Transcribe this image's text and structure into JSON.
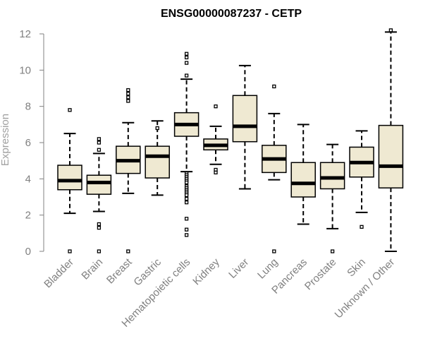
{
  "chart_data": {
    "type": "box",
    "title": "ENSG00000087237 - CETP",
    "xlabel": "",
    "ylabel": "Expression",
    "ylim": [
      0,
      12.3
    ],
    "yticks": [
      0,
      2,
      4,
      6,
      8,
      10,
      12
    ],
    "grid": false,
    "categories": [
      "Bladder",
      "Brain",
      "Breast",
      "Gastric",
      "Hematopoietic cells",
      "Kidney",
      "Liver",
      "Lung",
      "Pancreas",
      "Prostate",
      "Skin",
      "Unknown / Other"
    ],
    "boxes": [
      {
        "category": "Bladder",
        "q1": 3.4,
        "median": 3.9,
        "q3": 4.75,
        "whisker_low": 2.1,
        "whisker_high": 6.5,
        "outliers": [
          7.8,
          0.0
        ]
      },
      {
        "category": "Brain",
        "q1": 3.15,
        "median": 3.8,
        "q3": 4.2,
        "whisker_low": 2.2,
        "whisker_high": 5.4,
        "outliers": [
          6.2,
          6.0,
          5.6,
          1.5,
          1.3,
          0.0
        ]
      },
      {
        "category": "Breast",
        "q1": 4.3,
        "median": 5.0,
        "q3": 5.8,
        "whisker_low": 3.2,
        "whisker_high": 7.1,
        "outliers": [
          8.9,
          8.7,
          8.5,
          8.3,
          0.0
        ]
      },
      {
        "category": "Gastric",
        "q1": 4.05,
        "median": 5.25,
        "q3": 5.8,
        "whisker_low": 3.1,
        "whisker_high": 7.2,
        "outliers": [
          6.8
        ]
      },
      {
        "category": "Hematopoietic cells",
        "q1": 6.35,
        "median": 7.0,
        "q3": 7.65,
        "whisker_low": 4.4,
        "whisker_high": 9.5,
        "outliers": [
          10.9,
          10.7,
          10.4,
          9.7,
          4.3,
          4.2,
          4.1,
          4.0,
          3.9,
          3.8,
          3.6,
          3.5,
          3.4,
          3.3,
          3.2,
          3.1,
          2.9,
          2.7,
          1.8,
          1.2,
          0.9
        ]
      },
      {
        "category": "Kidney",
        "q1": 5.6,
        "median": 5.85,
        "q3": 6.2,
        "whisker_low": 4.8,
        "whisker_high": 6.9,
        "outliers": [
          8.0,
          4.5,
          4.35
        ]
      },
      {
        "category": "Liver",
        "q1": 6.05,
        "median": 6.9,
        "q3": 8.6,
        "whisker_low": 3.45,
        "whisker_high": 10.25,
        "outliers": []
      },
      {
        "category": "Lung",
        "q1": 4.35,
        "median": 5.1,
        "q3": 5.85,
        "whisker_low": 3.95,
        "whisker_high": 7.6,
        "outliers": [
          9.1,
          0.0
        ]
      },
      {
        "category": "Pancreas",
        "q1": 3.0,
        "median": 3.75,
        "q3": 4.9,
        "whisker_low": 1.5,
        "whisker_high": 7.0,
        "outliers": []
      },
      {
        "category": "Prostate",
        "q1": 3.45,
        "median": 4.05,
        "q3": 4.9,
        "whisker_low": 1.25,
        "whisker_high": 5.9,
        "outliers": [
          0.0
        ]
      },
      {
        "category": "Skin",
        "q1": 4.1,
        "median": 4.9,
        "q3": 5.75,
        "whisker_low": 2.15,
        "whisker_high": 6.65,
        "outliers": [
          1.35
        ]
      },
      {
        "category": "Unknown / Other",
        "q1": 3.5,
        "median": 4.7,
        "q3": 6.95,
        "whisker_low": 0.0,
        "whisker_high": 12.1,
        "outliers": [
          12.2
        ]
      }
    ],
    "colors": {
      "box_fill": "#efe9d2",
      "box_stroke": "#000000",
      "median": "#000000",
      "axis": "#808080",
      "tick_text": "#808080",
      "ylabel_text": "#a0a0a0",
      "title_text": "#000000"
    }
  }
}
